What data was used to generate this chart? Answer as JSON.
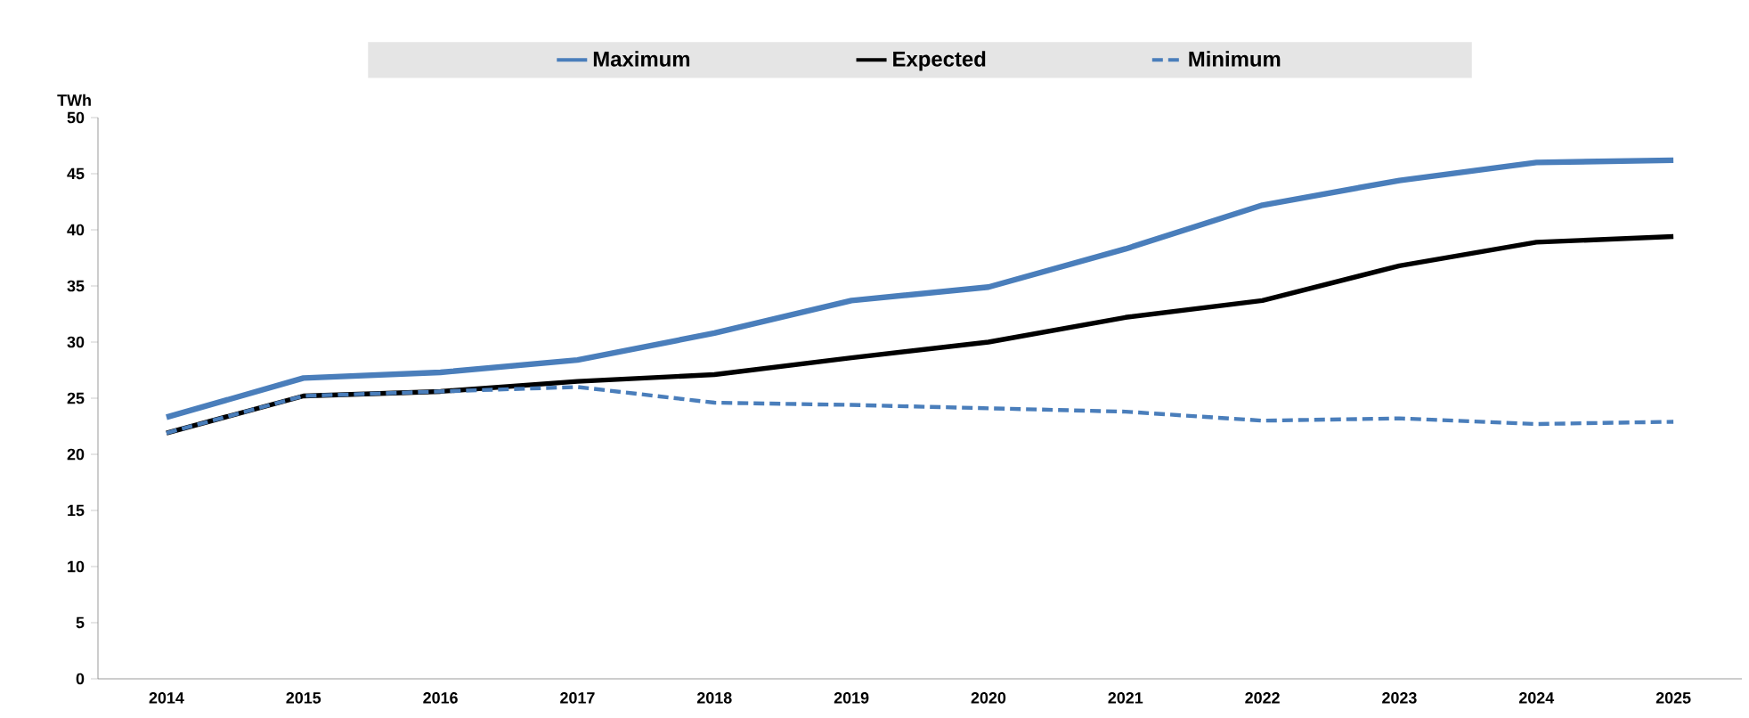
{
  "chart_data": {
    "type": "line",
    "ylabel": "TWh",
    "categories": [
      "2014",
      "2015",
      "2016",
      "2017",
      "2018",
      "2019",
      "2020",
      "2021",
      "2022",
      "2023",
      "2024",
      "2025"
    ],
    "series": [
      {
        "name": "Maximum",
        "color": "#4a7ebb",
        "line_style": "solid",
        "values": [
          23.3,
          26.8,
          27.3,
          28.4,
          30.8,
          33.7,
          34.9,
          38.3,
          42.2,
          44.4,
          46.0,
          46.2
        ]
      },
      {
        "name": "Expected",
        "color": "#000000",
        "line_style": "solid",
        "values": [
          21.9,
          25.2,
          25.6,
          26.5,
          27.1,
          28.6,
          30.0,
          32.2,
          33.7,
          36.8,
          38.9,
          39.4
        ]
      },
      {
        "name": "Minimum",
        "color": "#4a7ebb",
        "line_style": "dashed",
        "values": [
          21.9,
          25.2,
          25.6,
          26.0,
          24.6,
          24.4,
          24.1,
          23.8,
          23.0,
          23.2,
          22.7,
          22.9
        ]
      }
    ],
    "ylim": [
      0,
      50
    ],
    "yticks": [
      0,
      5,
      10,
      15,
      20,
      25,
      30,
      35,
      40,
      45,
      50
    ],
    "grid": false,
    "legend": "top",
    "marker": "none"
  }
}
